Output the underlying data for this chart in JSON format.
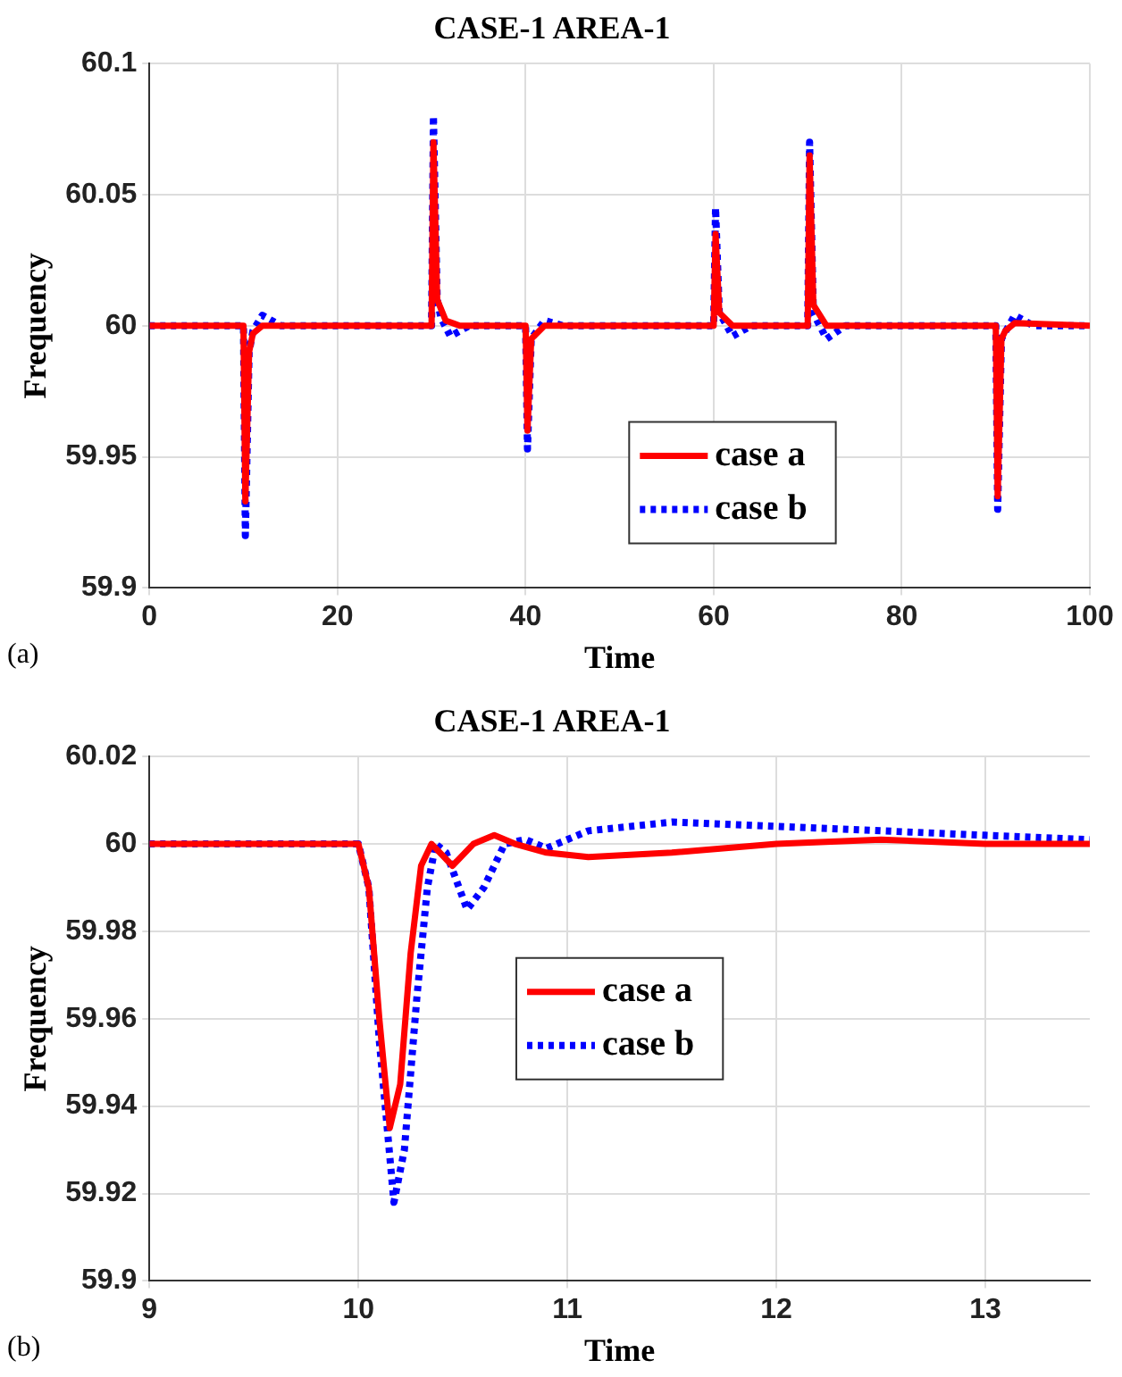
{
  "chart_data": [
    {
      "type": "line",
      "title": "CASE-1 AREA-1",
      "xlabel": "Time",
      "ylabel": "Frequency",
      "annotations": [
        "(a)"
      ],
      "xlim": [
        0,
        100
      ],
      "xticks": [
        0,
        20,
        40,
        60,
        80,
        100
      ],
      "ylim": [
        59.9,
        60.1
      ],
      "yticks": [
        59.9,
        59.95,
        60,
        60.05,
        60.1
      ],
      "grid": true,
      "legend": "bottom",
      "marker": "none",
      "series": [
        {
          "name": "case a",
          "color": "#ff0000",
          "line_style": "solid",
          "x": [
            0,
            10,
            10.2,
            10.6,
            11,
            12,
            30,
            30.2,
            30.6,
            31.5,
            33,
            40,
            40.2,
            40.6,
            42,
            60,
            60.2,
            60.6,
            62,
            70,
            70.2,
            70.6,
            72,
            90,
            90.2,
            90.6,
            91,
            92,
            100
          ],
          "values": [
            60,
            60,
            59.933,
            59.99,
            59.997,
            60,
            60,
            60.07,
            60.01,
            60.002,
            60,
            60,
            59.96,
            59.995,
            60,
            60,
            60.035,
            60.005,
            60,
            60,
            60.065,
            60.008,
            60,
            60,
            59.935,
            59.995,
            59.998,
            60.001,
            60
          ]
        },
        {
          "name": "case b",
          "color": "#0000ff",
          "line_style": "dotted",
          "x": [
            0,
            10,
            10.2,
            10.6,
            11,
            12,
            14,
            30,
            30.2,
            30.6,
            31,
            32,
            34,
            40,
            40.2,
            40.6,
            42,
            44,
            60,
            60.2,
            60.6,
            62,
            64,
            70,
            70.2,
            70.6,
            71,
            72,
            74,
            90,
            90.2,
            90.6,
            92,
            94,
            100
          ],
          "values": [
            60,
            60,
            59.92,
            59.99,
            59.998,
            60.004,
            60,
            60,
            60.08,
            60.01,
            60.003,
            59.996,
            60,
            60,
            59.953,
            59.995,
            60.002,
            60,
            60,
            60.045,
            60.005,
            59.996,
            60,
            60,
            60.07,
            60.005,
            60.002,
            59.995,
            60,
            60,
            59.93,
            59.995,
            60.004,
            60,
            60
          ]
        }
      ]
    },
    {
      "type": "line",
      "title": "CASE-1 AREA-1",
      "xlabel": "Time",
      "ylabel": "Frequency",
      "annotations": [
        "(b)"
      ],
      "xlim": [
        9,
        13.5
      ],
      "xticks": [
        9,
        10,
        11,
        12,
        13
      ],
      "ylim": [
        59.9,
        60.02
      ],
      "yticks": [
        59.9,
        59.92,
        59.94,
        59.96,
        59.98,
        60,
        60.02
      ],
      "grid": true,
      "legend": "center",
      "marker": "none",
      "series": [
        {
          "name": "case a",
          "color": "#ff0000",
          "line_style": "solid",
          "x": [
            9,
            10,
            10.05,
            10.1,
            10.15,
            10.2,
            10.25,
            10.3,
            10.35,
            10.45,
            10.55,
            10.65,
            10.75,
            10.9,
            11.1,
            11.5,
            12,
            12.5,
            13,
            13.5
          ],
          "values": [
            60,
            60,
            59.99,
            59.96,
            59.935,
            59.945,
            59.975,
            59.995,
            60,
            59.995,
            60,
            60.002,
            60,
            59.998,
            59.997,
            59.998,
            60,
            60.001,
            60,
            60
          ]
        },
        {
          "name": "case b",
          "color": "#0000ff",
          "line_style": "dotted",
          "x": [
            9,
            10,
            10.05,
            10.1,
            10.17,
            10.22,
            10.28,
            10.33,
            10.37,
            10.42,
            10.52,
            10.6,
            10.7,
            10.8,
            10.9,
            11.1,
            11.5,
            12,
            12.5,
            13,
            13.5
          ],
          "values": [
            60,
            60,
            59.99,
            59.955,
            59.918,
            59.93,
            59.965,
            59.99,
            60,
            59.998,
            59.985,
            59.99,
            60,
            60.001,
            59.999,
            60.003,
            60.005,
            60.004,
            60.003,
            60.002,
            60.001
          ]
        }
      ]
    }
  ]
}
